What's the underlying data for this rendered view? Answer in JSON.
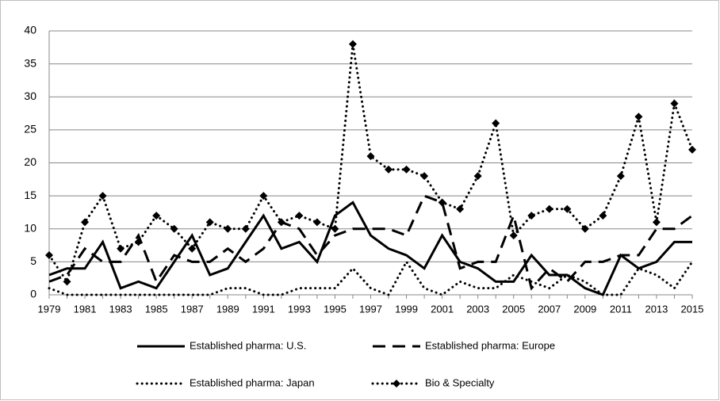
{
  "chart_data": {
    "type": "line",
    "categories": [
      "1979",
      null,
      "1981",
      null,
      "1983",
      null,
      "1985",
      null,
      "1987",
      null,
      "1989",
      null,
      "1991",
      null,
      "1993",
      null,
      "1995",
      null,
      "1997",
      null,
      "1999",
      null,
      "2001",
      null,
      "2003",
      null,
      "2005",
      null,
      "2007",
      null,
      "2009",
      null,
      "2011",
      null,
      "2013",
      null,
      "2015"
    ],
    "series": [
      {
        "name": "Established pharma: U.S.",
        "color": "#000000",
        "style": "solid",
        "values": [
          3,
          4,
          4,
          8,
          1,
          2,
          1,
          5,
          9,
          3,
          4,
          8,
          12,
          7,
          8,
          5,
          12,
          14,
          9,
          7,
          6,
          4,
          9,
          5,
          4,
          2,
          2,
          6,
          3,
          3,
          1,
          0,
          6,
          4,
          5,
          8,
          8
        ]
      },
      {
        "name": "Established pharma: Europe",
        "color": "#000000",
        "style": "dashed",
        "values": [
          2,
          3,
          7,
          5,
          5,
          9,
          2,
          6,
          5,
          5,
          7,
          5,
          7,
          11,
          10,
          6,
          9,
          10,
          10,
          10,
          9,
          15,
          14,
          4,
          5,
          5,
          12,
          1,
          4,
          2,
          5,
          5,
          6,
          6,
          10,
          10,
          12
        ]
      },
      {
        "name": "Established pharma: Japan",
        "color": "#000000",
        "style": "dotted",
        "values": [
          1,
          0,
          0,
          0,
          0,
          0,
          0,
          0,
          0,
          0,
          1,
          1,
          0,
          0,
          1,
          1,
          1,
          4,
          1,
          0,
          5,
          1,
          0,
          2,
          1,
          1,
          3,
          2,
          1,
          3,
          2,
          0,
          0,
          4,
          3,
          1,
          5
        ]
      },
      {
        "name": "Bio & Specialty",
        "color": "#000000",
        "style": "dotted",
        "marker": "diamond",
        "values": [
          6,
          2,
          11,
          15,
          7,
          8,
          12,
          10,
          7,
          11,
          10,
          10,
          15,
          11,
          12,
          11,
          10,
          38,
          21,
          19,
          19,
          18,
          14,
          13,
          18,
          26,
          9,
          12,
          13,
          13,
          10,
          12,
          18,
          27,
          11,
          29,
          22
        ]
      }
    ],
    "ylim": [
      0,
      40
    ],
    "yticks": [
      0,
      5,
      10,
      15,
      20,
      25,
      30,
      35,
      40
    ],
    "grid": true,
    "legend": "bottom"
  }
}
